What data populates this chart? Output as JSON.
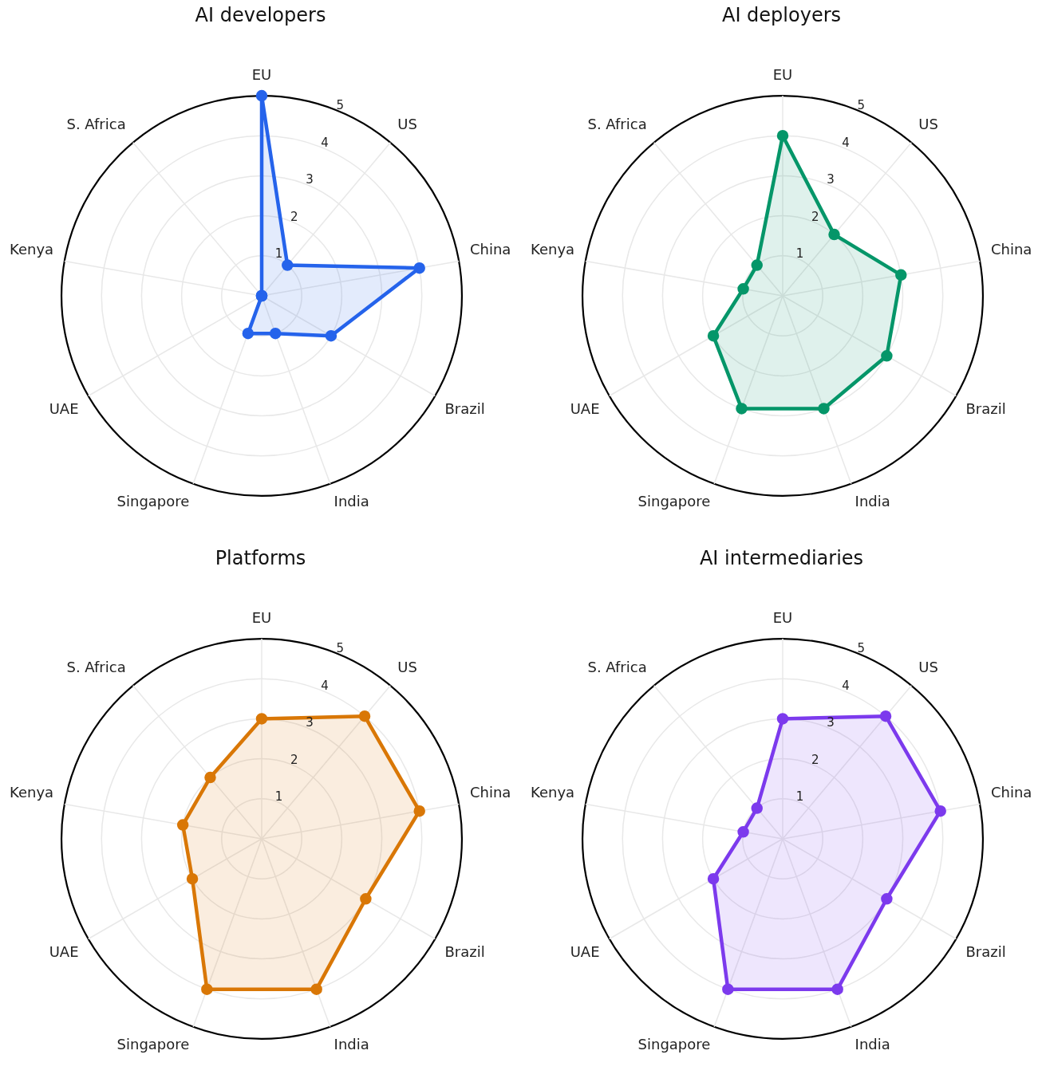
{
  "chart_data": [
    {
      "type": "radar",
      "title": "AI developers",
      "categories": [
        "EU",
        "US",
        "China",
        "Brazil",
        "India",
        "Singapore",
        "UAE",
        "Kenya",
        "S. Africa"
      ],
      "series": [
        {
          "color": "#2563eb",
          "values": [
            5,
            1,
            4,
            2,
            1,
            1,
            0,
            0,
            0
          ]
        }
      ],
      "ylim": [
        0,
        5
      ],
      "yticks": [
        1,
        2,
        3,
        4,
        5
      ],
      "grid": true,
      "marker": "circle"
    },
    {
      "type": "radar",
      "title": "AI deployers",
      "categories": [
        "EU",
        "US",
        "China",
        "Brazil",
        "India",
        "Singapore",
        "UAE",
        "Kenya",
        "S. Africa"
      ],
      "series": [
        {
          "color": "#059669",
          "values": [
            4,
            2,
            3,
            3,
            3,
            3,
            2,
            1,
            1
          ]
        }
      ],
      "ylim": [
        0,
        5
      ],
      "yticks": [
        1,
        2,
        3,
        4,
        5
      ],
      "grid": true,
      "marker": "circle"
    },
    {
      "type": "radar",
      "title": "Platforms",
      "categories": [
        "EU",
        "US",
        "China",
        "Brazil",
        "India",
        "Singapore",
        "UAE",
        "Kenya",
        "S. Africa"
      ],
      "series": [
        {
          "color": "#d97706",
          "values": [
            3,
            4,
            4,
            3,
            4,
            4,
            2,
            2,
            2
          ]
        }
      ],
      "ylim": [
        0,
        5
      ],
      "yticks": [
        1,
        2,
        3,
        4,
        5
      ],
      "grid": true,
      "marker": "circle"
    },
    {
      "type": "radar",
      "title": "AI intermediaries",
      "categories": [
        "EU",
        "US",
        "China",
        "Brazil",
        "India",
        "Singapore",
        "UAE",
        "Kenya",
        "S. Africa"
      ],
      "series": [
        {
          "color": "#7c3aed",
          "values": [
            3,
            4,
            4,
            3,
            4,
            4,
            2,
            1,
            1
          ]
        }
      ],
      "ylim": [
        0,
        5
      ],
      "yticks": [
        1,
        2,
        3,
        4,
        5
      ],
      "grid": true,
      "marker": "circle"
    }
  ]
}
